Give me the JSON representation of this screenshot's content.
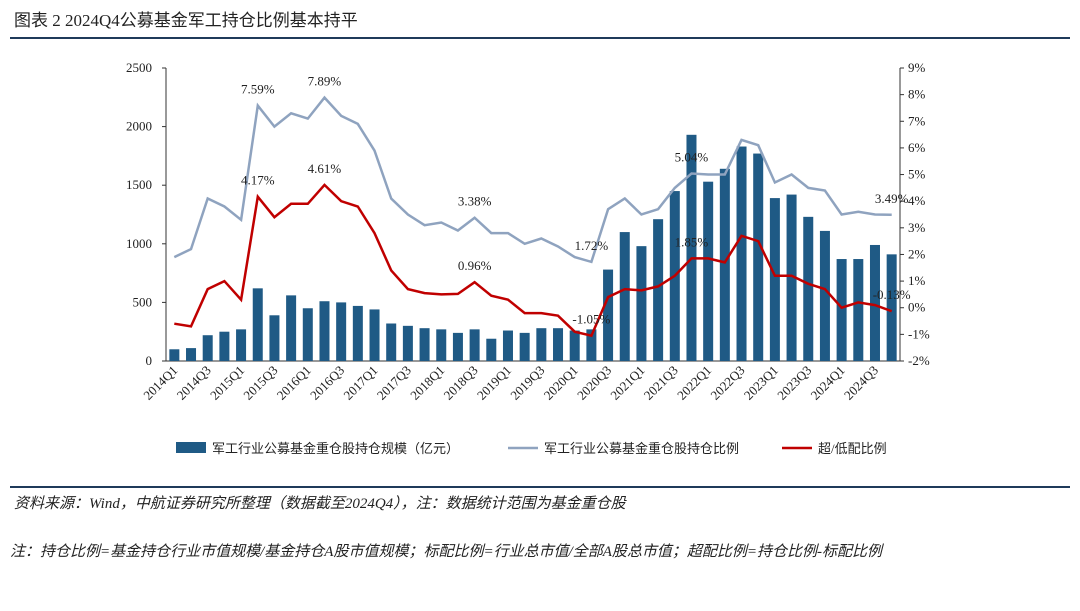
{
  "chart_data": {
    "type": "bar_line_combo",
    "title": "图表 2 2024Q4公募基金军工持仓比例基本持平",
    "source": "资料来源：Wind，中航证券研究所整理（数据截至2024Q4），注：数据统计范围为基金重仓股",
    "footnote": "注：持仓比例=基金持仓行业市值规模/基金持仓A股市值规模；标配比例=行业总市值/全部A股总市值；超配比例=持仓比例-标配比例",
    "categories": [
      "2014Q1",
      null,
      "2014Q3",
      null,
      "2015Q1",
      null,
      "2015Q3",
      null,
      "2016Q1",
      null,
      "2016Q3",
      null,
      "2017Q1",
      null,
      "2017Q3",
      null,
      "2018Q1",
      null,
      "2018Q3",
      null,
      "2019Q1",
      null,
      "2019Q3",
      null,
      "2020Q1",
      null,
      "2020Q3",
      null,
      "2021Q1",
      null,
      "2021Q3",
      null,
      "2022Q1",
      null,
      "2022Q3",
      null,
      "2023Q1",
      null,
      "2023Q3",
      null,
      "2024Q1",
      null,
      "2024Q3",
      null
    ],
    "ylim": [
      0,
      2500
    ],
    "yticks": [
      0,
      500,
      1000,
      1500,
      2000,
      2500
    ],
    "y2lim": [
      -2,
      9
    ],
    "y2ticks": [
      {
        "value": -2,
        "label": "-2%"
      },
      {
        "value": -1,
        "label": "-1%"
      },
      {
        "value": 0,
        "label": "0%"
      },
      {
        "value": 1,
        "label": "1%"
      },
      {
        "value": 2,
        "label": "2%"
      },
      {
        "value": 3,
        "label": "3%"
      },
      {
        "value": 4,
        "label": "4%"
      },
      {
        "value": 5,
        "label": "5%"
      },
      {
        "value": 6,
        "label": "6%"
      },
      {
        "value": 7,
        "label": "7%"
      },
      {
        "value": 8,
        "label": "8%"
      },
      {
        "value": 9,
        "label": "9%"
      }
    ],
    "series": [
      {
        "name": "军工行业公募基金重仓股持仓规模（亿元）",
        "kind": "bar",
        "color": "#1f5a85",
        "values": [
          100,
          110,
          220,
          250,
          270,
          620,
          390,
          560,
          450,
          510,
          500,
          470,
          440,
          320,
          300,
          280,
          270,
          240,
          270,
          190,
          260,
          240,
          280,
          280,
          260,
          270,
          780,
          1100,
          980,
          1210,
          1450,
          1930,
          1530,
          1640,
          1830,
          1770,
          1390,
          1420,
          1230,
          1110,
          870,
          870,
          990,
          910
        ]
      },
      {
        "name": "军工行业公募基金重仓股持仓比例",
        "kind": "line",
        "axis": "y2",
        "color": "#8fa3bf",
        "values": [
          1.9,
          2.2,
          4.1,
          3.8,
          3.3,
          7.59,
          6.8,
          7.3,
          7.1,
          7.89,
          7.2,
          6.9,
          5.9,
          4.1,
          3.5,
          3.1,
          3.2,
          2.9,
          3.38,
          2.8,
          2.8,
          2.4,
          2.6,
          2.3,
          1.9,
          1.72,
          3.7,
          4.1,
          3.5,
          3.7,
          4.5,
          5.04,
          5.0,
          5.0,
          6.3,
          6.1,
          4.7,
          5.0,
          4.5,
          4.4,
          3.5,
          3.6,
          3.5,
          3.49
        ],
        "value_labels": [
          null,
          null,
          null,
          null,
          null,
          "7.59%",
          null,
          null,
          null,
          "7.89%",
          null,
          null,
          null,
          null,
          null,
          null,
          null,
          null,
          "3.38%",
          null,
          null,
          null,
          null,
          null,
          null,
          "1.72%",
          null,
          null,
          null,
          null,
          null,
          "5.04%",
          null,
          null,
          null,
          null,
          null,
          null,
          null,
          null,
          null,
          null,
          null,
          "3.49%"
        ]
      },
      {
        "name": "超/低配比例",
        "kind": "line",
        "axis": "y2",
        "color": "#c00000",
        "values": [
          -0.6,
          -0.7,
          0.7,
          1.0,
          0.3,
          4.17,
          3.4,
          3.9,
          3.9,
          4.61,
          4.0,
          3.8,
          2.8,
          1.4,
          0.7,
          0.55,
          0.5,
          0.52,
          0.96,
          0.45,
          0.3,
          -0.2,
          -0.2,
          -0.3,
          -0.9,
          -1.05,
          0.4,
          0.7,
          0.65,
          0.8,
          1.2,
          1.85,
          1.85,
          1.7,
          2.7,
          2.5,
          1.2,
          1.2,
          0.9,
          0.7,
          0.0,
          0.2,
          0.1,
          -0.13
        ],
        "value_labels": [
          null,
          null,
          null,
          null,
          null,
          "4.17%",
          null,
          null,
          null,
          "4.61%",
          null,
          null,
          null,
          null,
          null,
          null,
          null,
          null,
          "0.96%",
          null,
          null,
          null,
          null,
          null,
          null,
          "-1.05%",
          null,
          null,
          null,
          null,
          null,
          "1.85%",
          null,
          null,
          null,
          null,
          null,
          null,
          null,
          null,
          null,
          null,
          null,
          "-0.13%"
        ]
      }
    ]
  }
}
